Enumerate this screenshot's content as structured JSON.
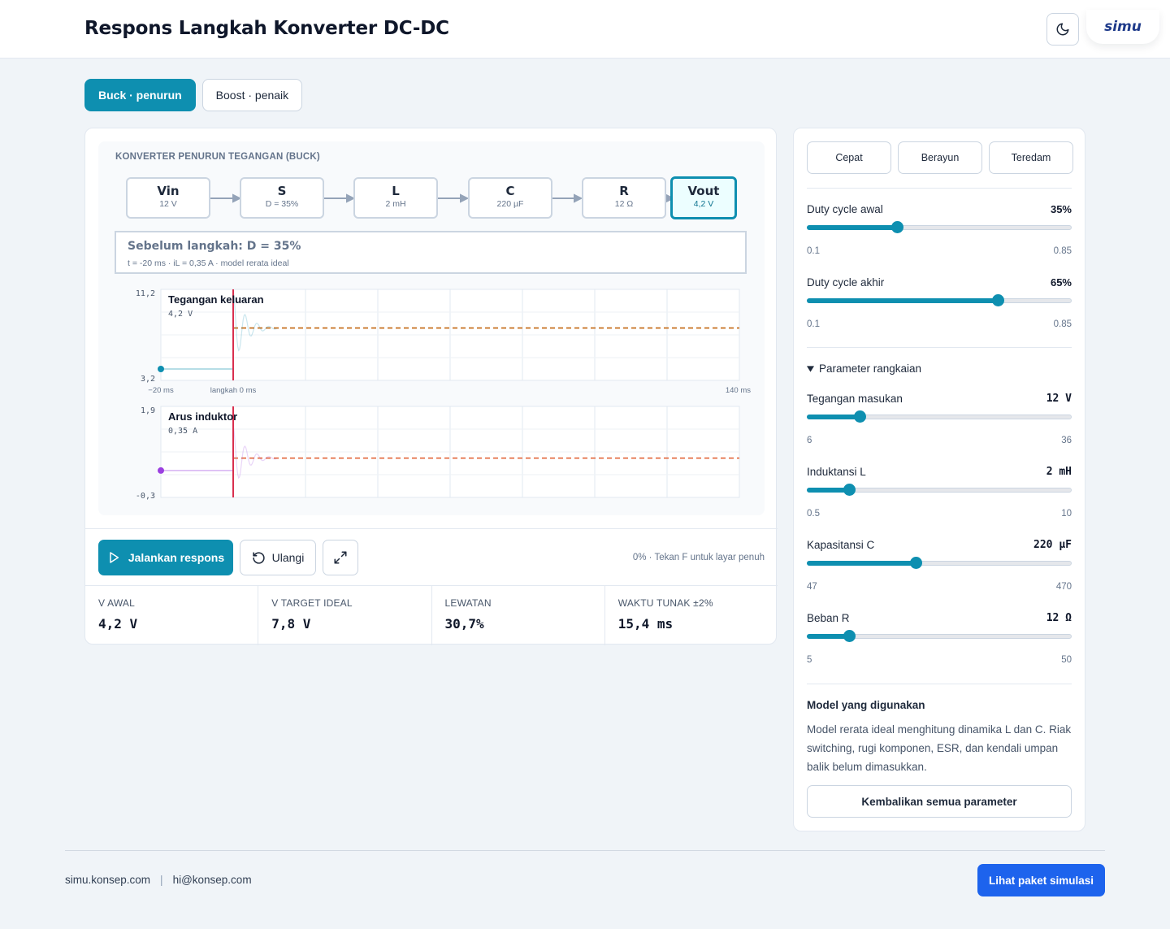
{
  "header": {
    "title": "Respons Langkah Konverter DC-DC",
    "logo_text": "simu"
  },
  "mode_tabs": [
    {
      "label": "Buck · penurun",
      "active": true
    },
    {
      "label": "Boost · penaik",
      "active": false
    }
  ],
  "sim": {
    "title": "KONVERTER PENURUN TEGANGAN (BUCK)",
    "blocks": [
      {
        "name": "Vin",
        "value": "12 V"
      },
      {
        "name": "S",
        "value": "D = 35%"
      },
      {
        "name": "L",
        "value": "2 mH"
      },
      {
        "name": "C",
        "value": "220 µF"
      },
      {
        "name": "R",
        "value": "12 Ω"
      },
      {
        "name": "Vout",
        "value": "4,2 V"
      }
    ],
    "info_title": "Sebelum langkah: D = 35%",
    "info_sub": "t = -20 ms · iL = 0,35 A · model rerata ideal"
  },
  "chart_data": [
    {
      "type": "line",
      "title": "Tegangan keluaran",
      "current_value": "4,2 V",
      "y_tick_labels": [
        "11,2",
        "3,2"
      ],
      "ylim": [
        3.2,
        11.2
      ],
      "x_tick_labels": [
        "−20 ms",
        "langkah 0 ms",
        "140 ms"
      ],
      "xlim": [
        -20,
        140
      ],
      "series": [
        {
          "values": [
            [
              -20,
              4.2
            ],
            [
              0,
              4.2
            ]
          ]
        }
      ],
      "target": 7.8,
      "step_time": 0
    },
    {
      "type": "line",
      "title": "Arus induktor",
      "current_value": "0,35 A",
      "y_tick_labels": [
        "1,9",
        "-0,3"
      ],
      "ylim": [
        -0.3,
        1.9
      ],
      "xlim": [
        -20,
        140
      ],
      "series": [
        {
          "values": [
            [
              -20,
              0.35
            ],
            [
              0,
              0.35
            ]
          ]
        }
      ],
      "target": 0.65,
      "step_time": 0
    }
  ],
  "controls": {
    "run_label": "Jalankan respons",
    "reset_label": "Ulangi",
    "hint": "0% · Tekan F untuk layar penuh"
  },
  "stats": [
    {
      "label": "V AWAL",
      "value": "4,2 V"
    },
    {
      "label": "V TARGET IDEAL",
      "value": "7,8 V"
    },
    {
      "label": "LEWATAN",
      "value": "30,7%"
    },
    {
      "label": "WAKTU TUNAK ±2%",
      "value": "15,4 ms"
    }
  ],
  "presets": [
    "Cepat",
    "Berayun",
    "Teredam"
  ],
  "sliders": {
    "duty_start": {
      "label": "Duty cycle awal",
      "value": "35%",
      "min": "0.1",
      "max": "0.85",
      "fraction": 0.34
    },
    "duty_end": {
      "label": "Duty cycle akhir",
      "value": "65%",
      "min": "0.1",
      "max": "0.85",
      "fraction": 0.72
    },
    "vin": {
      "label": "Tegangan masukan",
      "value": "12 V",
      "min": "6",
      "max": "36",
      "fraction": 0.2
    },
    "inductance": {
      "label": "Induktansi L",
      "value": "2 mH",
      "min": "0.5",
      "max": "10",
      "fraction": 0.16
    },
    "capacitance": {
      "label": "Kapasitansi C",
      "value": "220 µF",
      "min": "47",
      "max": "470",
      "fraction": 0.41
    },
    "load": {
      "label": "Beban R",
      "value": "12 Ω",
      "min": "5",
      "max": "50",
      "fraction": 0.16
    }
  },
  "param_section_label": "Parameter rangkaian",
  "model": {
    "title": "Model yang digunakan",
    "text": "Model rerata ideal menghitung dinamika L dan C. Riak switching, rugi komponen, ESR, dan kendali umpan balik belum dimasukkan."
  },
  "reset_all_label": "Kembalikan semua parameter",
  "footer": {
    "site": "simu.konsep.com",
    "separator": "|",
    "email": "hi@konsep.com",
    "cta": "Lihat paket simulasi"
  },
  "colors": {
    "accent": "#0e8fb0",
    "cta": "#1d63ed",
    "step_line": "#d9304f",
    "target_voltage": "#c2660f",
    "target_current": "#e05a2b",
    "current_dot": "#9b3fe0"
  }
}
